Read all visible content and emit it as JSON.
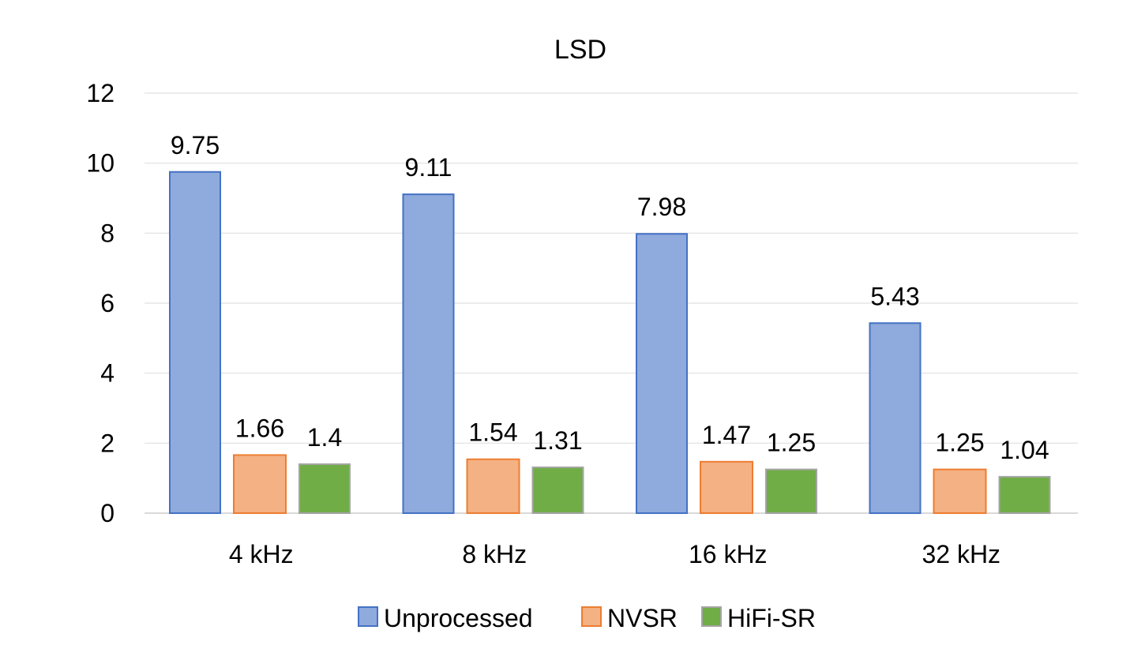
{
  "chart_data": {
    "type": "bar",
    "title": "LSD",
    "categories": [
      "4 kHz",
      "8 kHz",
      "16 kHz",
      "32 kHz"
    ],
    "series": [
      {
        "name": "Unprocessed",
        "values": [
          9.75,
          9.11,
          7.98,
          5.43
        ],
        "color": "#8faadc",
        "stroke": "#4472c4"
      },
      {
        "name": "NVSR",
        "values": [
          1.66,
          1.54,
          1.47,
          1.25
        ],
        "color": "#f4b183",
        "stroke": "#ed7d31"
      },
      {
        "name": "HiFi-SR",
        "values": [
          1.4,
          1.31,
          1.25,
          1.04
        ],
        "color": "#70ad47",
        "stroke": "#a5a5a5"
      }
    ],
    "data_labels": [
      [
        "9.75",
        "9.11",
        "7.98",
        "5.43"
      ],
      [
        "1.66",
        "1.54",
        "1.47",
        "1.25"
      ],
      [
        "1.4",
        "1.31",
        "1.25",
        "1.04"
      ]
    ],
    "ylim": [
      0,
      12
    ],
    "yticks": [
      0,
      2,
      4,
      6,
      8,
      10,
      12
    ],
    "ytick_labels": [
      "0",
      "2",
      "4",
      "6",
      "8",
      "10",
      "12"
    ],
    "xlabel": "",
    "ylabel": "",
    "grid": true,
    "legend_position": "bottom"
  }
}
